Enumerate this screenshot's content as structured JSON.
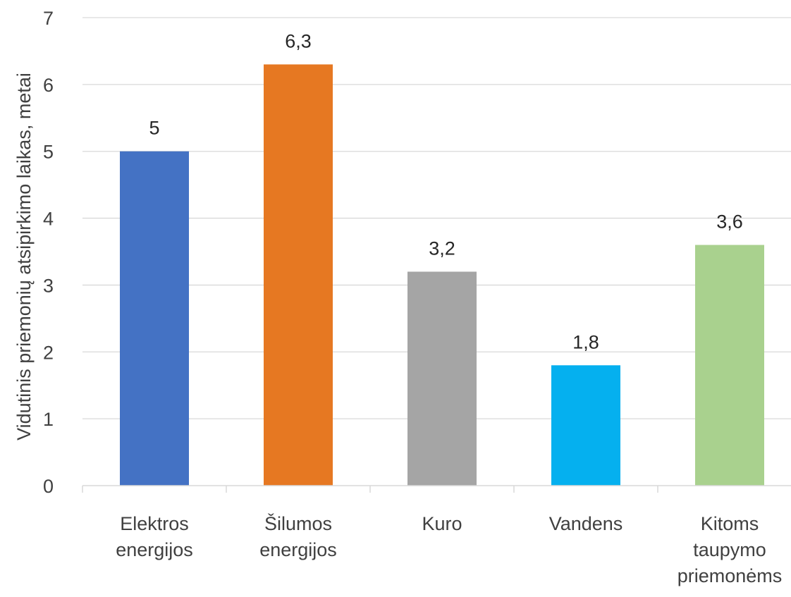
{
  "chart_data": {
    "type": "bar",
    "categories": [
      [
        "Elektros",
        "energijos"
      ],
      [
        "Šilumos",
        "energijos"
      ],
      [
        "Kuro"
      ],
      [
        "Vandens"
      ],
      [
        "Kitoms",
        "taupymo",
        "priemonėms"
      ]
    ],
    "values": [
      5,
      6.3,
      3.2,
      1.8,
      3.6
    ],
    "data_labels": [
      "5",
      "6,3",
      "3,2",
      "1,8",
      "3,6"
    ],
    "colors": [
      "#4472C4",
      "#E67822",
      "#A5A5A5",
      "#05B0EF",
      "#A9D18E"
    ],
    "ylabel": "Vidutinis priemonių atsipirkimo laikas, metai",
    "xlabel": "",
    "title": "",
    "ylim": [
      0,
      7
    ],
    "yticks": [
      "0",
      "1",
      "2",
      "3",
      "4",
      "5",
      "6",
      "7"
    ],
    "grid": true,
    "legend": "none"
  }
}
